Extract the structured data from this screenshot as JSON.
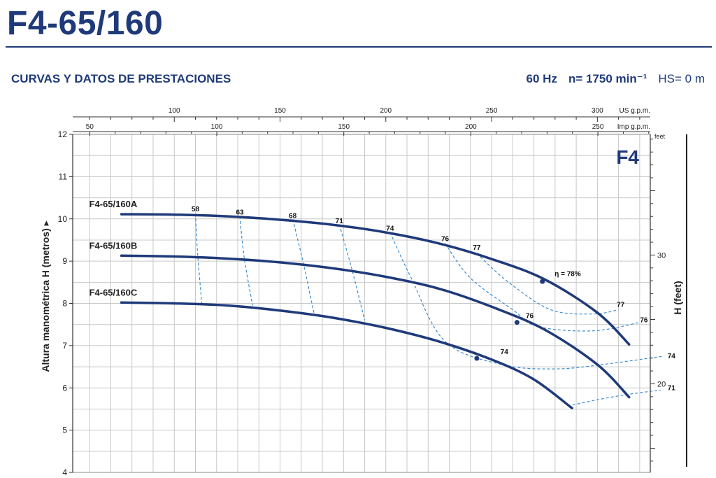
{
  "header": {
    "title": "F4-65/160",
    "subtitle": "CURVAS Y DATOS DE PRESTACIONES",
    "frequency": "60 Hz",
    "speed": "n= 1750 min⁻¹",
    "hs": "HS= 0 m"
  },
  "chart_data": {
    "type": "line",
    "badge": "F4",
    "ylabel": "Altura manométrica H (metros)",
    "y2label": "H (feet)",
    "y2unit": "feet",
    "ylim": [
      4,
      12
    ],
    "yticks": [
      4,
      5,
      6,
      7,
      8,
      9,
      10,
      11,
      12
    ],
    "y2ticks": [
      20,
      30
    ],
    "flow_scales": [
      {
        "unit": "US g.p.m.",
        "ticks": [
          100,
          150,
          200,
          250,
          300
        ]
      },
      {
        "unit": "Imp g.p.m.",
        "ticks": [
          50,
          100,
          150,
          200,
          250
        ]
      }
    ],
    "xlim_usgpm": [
      52,
      325
    ],
    "grid": true,
    "series": [
      {
        "name": "F4-65/160A",
        "x": [
          75,
          100,
          125,
          150,
          175,
          200,
          225,
          250,
          275,
          300,
          315
        ],
        "y": [
          10.11,
          10.1,
          10.06,
          9.98,
          9.86,
          9.68,
          9.42,
          9.05,
          8.57,
          7.78,
          7.03
        ]
      },
      {
        "name": "F4-65/160B",
        "x": [
          75,
          100,
          125,
          150,
          175,
          200,
          225,
          250,
          275,
          300,
          315
        ],
        "y": [
          9.13,
          9.11,
          9.06,
          8.97,
          8.83,
          8.63,
          8.35,
          7.92,
          7.38,
          6.55,
          5.78
        ]
      },
      {
        "name": "F4-65/160C",
        "x": [
          75,
          100,
          125,
          150,
          175,
          200,
          225,
          250,
          270,
          288
        ],
        "y": [
          8.02,
          8.0,
          7.95,
          7.83,
          7.66,
          7.42,
          7.1,
          6.67,
          6.2,
          5.52
        ]
      }
    ],
    "efficiency_labels": [
      {
        "text": "58",
        "x": 110,
        "y": 10.18
      },
      {
        "text": "63",
        "x": 131,
        "y": 10.1
      },
      {
        "text": "68",
        "x": 156,
        "y": 10.02
      },
      {
        "text": "71",
        "x": 178,
        "y": 9.9
      },
      {
        "text": "74",
        "x": 202,
        "y": 9.72
      },
      {
        "text": "76",
        "x": 228,
        "y": 9.47
      },
      {
        "text": "77",
        "x": 243,
        "y": 9.27
      },
      {
        "text": "η = 78%",
        "x": 286,
        "y": 8.65
      },
      {
        "text": "77",
        "x": 311,
        "y": 7.92
      },
      {
        "text": "76",
        "x": 322,
        "y": 7.55
      },
      {
        "text": "76",
        "x": 268,
        "y": 7.65
      },
      {
        "text": "74",
        "x": 335,
        "y": 6.7
      },
      {
        "text": "74",
        "x": 256,
        "y": 6.8
      },
      {
        "text": "71",
        "x": 335,
        "y": 5.95
      }
    ],
    "efficiency_iso_lines": [
      {
        "name": "58",
        "points": [
          [
            110,
            10.12
          ],
          [
            111,
            9.2
          ],
          [
            113,
            8.0
          ]
        ]
      },
      {
        "name": "63",
        "points": [
          [
            131,
            10.06
          ],
          [
            133,
            9.1
          ],
          [
            137,
            7.95
          ]
        ]
      },
      {
        "name": "68",
        "points": [
          [
            156,
            9.99
          ],
          [
            161,
            8.95
          ],
          [
            166,
            7.78
          ]
        ]
      },
      {
        "name": "71",
        "points": [
          [
            178,
            9.87
          ],
          [
            184,
            8.8
          ],
          [
            190,
            7.6
          ]
        ]
      },
      {
        "name": "74",
        "points": [
          [
            202,
            9.68
          ],
          [
            212,
            8.6
          ],
          [
            228,
            7.1
          ],
          [
            255,
            6.55
          ],
          [
            280,
            6.45
          ],
          [
            302,
            6.55
          ],
          [
            331,
            6.75
          ]
        ]
      },
      {
        "name": "76",
        "points": [
          [
            228,
            9.42
          ],
          [
            240,
            8.6
          ],
          [
            260,
            7.85
          ],
          [
            272,
            7.45
          ],
          [
            298,
            7.35
          ],
          [
            320,
            7.55
          ]
        ]
      },
      {
        "name": "77",
        "points": [
          [
            243,
            9.18
          ],
          [
            258,
            8.5
          ],
          [
            278,
            7.85
          ],
          [
            298,
            7.75
          ],
          [
            310,
            7.85
          ]
        ]
      },
      {
        "name": "71",
        "points": [
          [
            286,
            5.57
          ],
          [
            300,
            5.72
          ],
          [
            315,
            5.85
          ],
          [
            330,
            5.95
          ]
        ]
      }
    ],
    "marker_points": [
      {
        "x": 274,
        "y": 8.52
      },
      {
        "x": 262,
        "y": 7.55
      },
      {
        "x": 243,
        "y": 6.7
      }
    ],
    "colors": {
      "curve": "#1f3a7a",
      "iso": "#3a8ccf",
      "grid": "#c8c8c8",
      "axis": "#333333"
    }
  }
}
